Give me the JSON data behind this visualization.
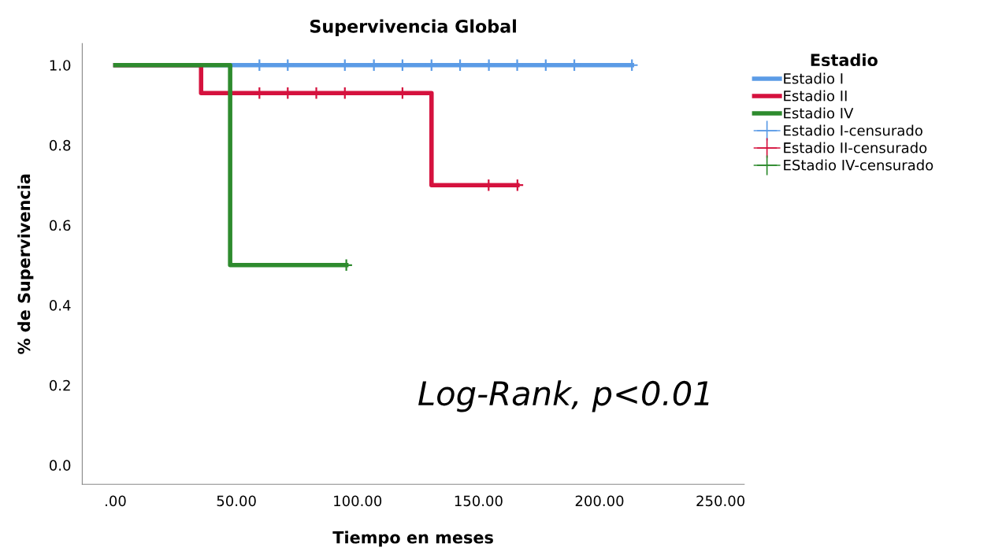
{
  "chart_data": {
    "type": "step",
    "title": "Supervivencia Global",
    "xlabel": "Tiempo en meses",
    "ylabel": "% de Supervivencia",
    "legend_title": "Estadio",
    "series": [
      {
        "name": "Estadio I",
        "color": "#5b9be6",
        "x": [
          0,
          213.4
        ],
        "values": [
          1.0,
          1.0
        ]
      },
      {
        "name": "Estadio II",
        "color": "#d5123e",
        "x": [
          0,
          35.4,
          130.6,
          166.1
        ],
        "values": [
          1.0,
          0.93,
          0.7,
          0.7
        ]
      },
      {
        "name": "Estadio IV",
        "color": "#2e8b2e",
        "x": [
          0,
          47.4,
          95.4
        ],
        "values": [
          1.0,
          0.5,
          0.5
        ]
      },
      {
        "name": "Estadio I-censurado",
        "type": "scatter",
        "marker": "cross",
        "color": "#5b9be6",
        "x": [
          59.5,
          71.2,
          94.8,
          106.8,
          118.6,
          130.6,
          142.4,
          154.3,
          166.0,
          177.8,
          189.6,
          213.4
        ],
        "values": [
          1,
          1,
          1,
          1,
          1,
          1,
          1,
          1,
          1,
          1,
          1,
          1
        ]
      },
      {
        "name": "Estadio II-censurado",
        "type": "scatter",
        "marker": "cross",
        "color": "#d5123e",
        "x": [
          59.5,
          71.2,
          83.0,
          94.8,
          118.6,
          154.2,
          166.1
        ],
        "values": [
          0.93,
          0.93,
          0.93,
          0.93,
          0.93,
          0.7,
          0.7
        ]
      },
      {
        "name": "EStadio IV-censurado",
        "type": "scatter",
        "marker": "cross",
        "color": "#2e8b2e",
        "x": [
          95.4
        ],
        "values": [
          0.5
        ]
      }
    ],
    "annotations": [
      "Log-Rank, p<0.01"
    ],
    "xlim": [
      -13.7,
      259.8
    ],
    "ylim": [
      -0.048,
      1.054
    ],
    "xticks": [
      {
        "value": 0,
        "label": ".00"
      },
      {
        "value": 50,
        "label": "50.00"
      },
      {
        "value": 100,
        "label": "100.00"
      },
      {
        "value": 150,
        "label": "150.00"
      },
      {
        "value": 200,
        "label": "200.00"
      },
      {
        "value": 250,
        "label": "250.00"
      }
    ],
    "yticks": [
      {
        "value": 0,
        "label": "0.0"
      },
      {
        "value": 0.2,
        "label": "0.2"
      },
      {
        "value": 0.4,
        "label": "0.4"
      },
      {
        "value": 0.6,
        "label": "0.6"
      },
      {
        "value": 0.8,
        "label": "0.8"
      },
      {
        "value": 1.0,
        "label": "1.0"
      }
    ],
    "grid": false,
    "legend": "top right"
  }
}
